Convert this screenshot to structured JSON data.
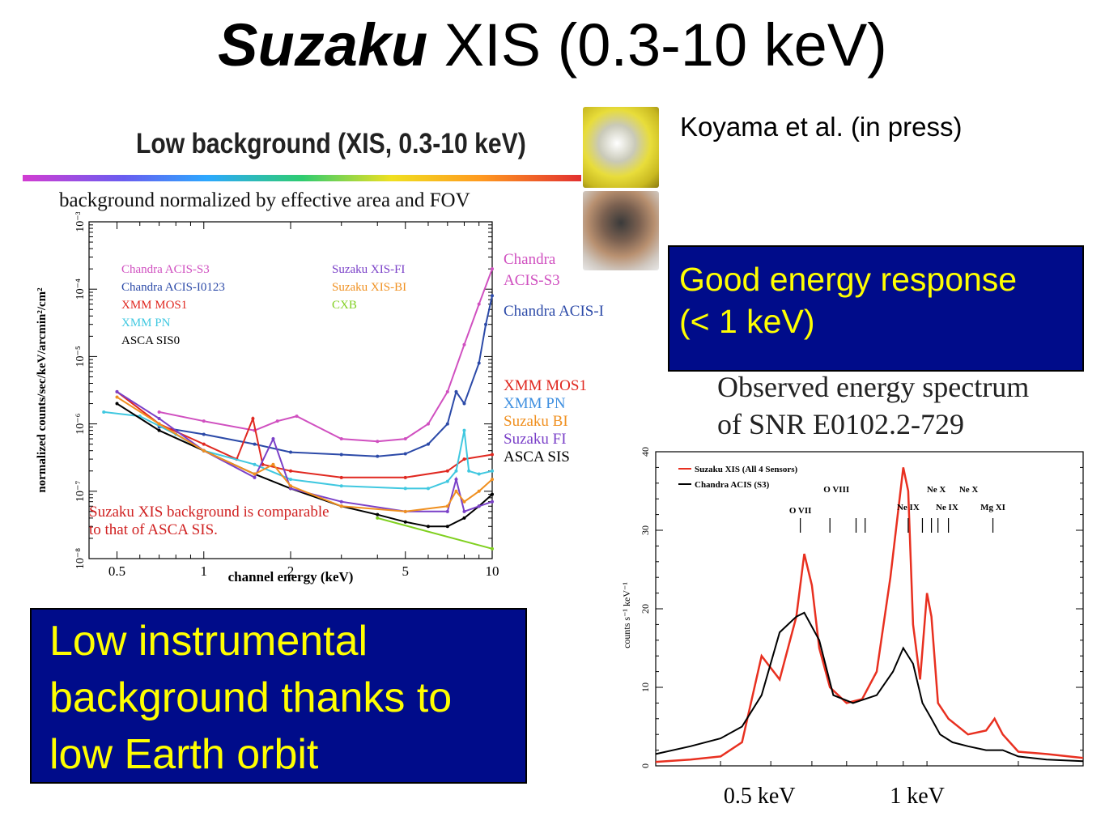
{
  "slide": {
    "title_italic": "Suzaku",
    "title_rest": " XIS (0.3-10 keV)",
    "citation": "Koyama et al. (in press)",
    "energy_box": [
      "Good energy response",
      "(< 1 keV)"
    ],
    "background_box": [
      "Low instrumental",
      "background thanks to",
      "low Earth orbit"
    ],
    "left_heading": "Low background (XIS, 0.3-10 keV)",
    "left_subtitle": "background normalized by effective area and FOV",
    "right_heading": [
      "Observed energy spectrum",
      "of SNR E0102.2-729"
    ]
  },
  "colors": {
    "box_bg": "#000c8a",
    "box_text": "#ffff00",
    "chandra_s3": "#d050c0",
    "chandra_i": "#2c4aa8",
    "xmm_mos1": "#e02820",
    "xmm_pn": "#40c8e0",
    "asca_sis0": "#000000",
    "suzaku_fi": "#7a40c8",
    "suzaku_bi": "#f09020",
    "cxb": "#80d020",
    "suzaku_xis_red": "#e83020"
  },
  "chart_data": [
    {
      "type": "line",
      "xlabel": "channel energy (keV)",
      "ylabel": "normalized counts/sec/keV/arcmin²/cm²",
      "xscale": "log",
      "yscale": "log",
      "xlim": [
        0.4,
        10
      ],
      "ylim": [
        1e-08,
        0.001
      ],
      "x_ticks": [
        "0.5",
        "1",
        "2",
        "5",
        "10"
      ],
      "y_ticks": [
        "10⁻⁸",
        "10⁻⁷",
        "10⁻⁶",
        "10⁻⁵",
        "10⁻⁴",
        "10⁻³"
      ],
      "legend": [
        "Chandra ACIS-S3",
        "Chandra ACIS-I0123",
        "XMM MOS1",
        "XMM PN",
        "ASCA SIS0",
        "Suzaku XIS-FI",
        "Suzaku XIS-BI",
        "CXB"
      ],
      "right_labels": [
        {
          "text": "Chandra",
          "color": "#d050c0"
        },
        {
          "text": "ACIS-S3",
          "color": "#d050c0"
        },
        {
          "text": "Chandra ACIS-I",
          "color": "#2c4aa8"
        },
        {
          "text": "XMM MOS1",
          "color": "#e02820"
        },
        {
          "text": "XMM PN",
          "color": "#4090e0"
        },
        {
          "text": "Suzaku BI",
          "color": "#f09020"
        },
        {
          "text": "Suzaku FI",
          "color": "#7a40c8"
        },
        {
          "text": "ASCA SIS",
          "color": "#000000"
        }
      ],
      "annotation": [
        "Suzaku XIS background is comparable",
        "to that of ASCA SIS."
      ],
      "series": [
        {
          "name": "Chandra ACIS-S3",
          "color": "#d050c0",
          "x": [
            0.7,
            1.0,
            1.5,
            1.8,
            2.1,
            3,
            4,
            5,
            6,
            7,
            8,
            9,
            10
          ],
          "y": [
            1.5e-06,
            1.1e-06,
            8e-07,
            1.1e-06,
            1.3e-06,
            6e-07,
            5.5e-07,
            6e-07,
            1e-06,
            3e-06,
            1.5e-05,
            6e-05,
            0.0002
          ]
        },
        {
          "name": "Chandra ACIS-I0123",
          "color": "#2c4aa8",
          "x": [
            0.7,
            1.0,
            1.5,
            2.0,
            3,
            4,
            5,
            6,
            7,
            7.5,
            8,
            9,
            9.5,
            10
          ],
          "y": [
            9e-07,
            7e-07,
            5e-07,
            3.8e-07,
            3.5e-07,
            3.3e-07,
            3.6e-07,
            5e-07,
            1e-06,
            3e-06,
            2e-06,
            8e-06,
            3e-05,
            8e-05
          ]
        },
        {
          "name": "XMM MOS1",
          "color": "#e02820",
          "x": [
            0.5,
            0.7,
            1.0,
            1.3,
            1.48,
            1.6,
            2.0,
            3,
            5,
            7,
            8,
            10
          ],
          "y": [
            3e-06,
            1e-06,
            5e-07,
            3e-07,
            1.2e-06,
            2.5e-07,
            2e-07,
            1.6e-07,
            1.6e-07,
            2e-07,
            3e-07,
            3.5e-07
          ]
        },
        {
          "name": "XMM PN",
          "color": "#40c8e0",
          "x": [
            0.45,
            0.6,
            0.8,
            1.0,
            1.5,
            2,
            3,
            5,
            6,
            7,
            7.5,
            8,
            8.3,
            9,
            10
          ],
          "y": [
            1.5e-06,
            1.3e-06,
            7e-07,
            4e-07,
            2.5e-07,
            1.5e-07,
            1.2e-07,
            1.1e-07,
            1.1e-07,
            1.4e-07,
            2e-07,
            8e-07,
            2e-07,
            1.8e-07,
            2e-07
          ]
        },
        {
          "name": "ASCA SIS0",
          "color": "#000000",
          "x": [
            0.5,
            0.7,
            1.0,
            1.5,
            2,
            3,
            4,
            5,
            6,
            7,
            8,
            9,
            10
          ],
          "y": [
            2e-06,
            8e-07,
            4e-07,
            1.8e-07,
            1.1e-07,
            6e-08,
            4.5e-08,
            3.5e-08,
            3e-08,
            3e-08,
            4e-08,
            6e-08,
            9e-08
          ]
        },
        {
          "name": "Suzaku XIS-FI",
          "color": "#7a40c8",
          "x": [
            0.5,
            0.7,
            1.0,
            1.5,
            1.74,
            2,
            3,
            5,
            7,
            7.5,
            8,
            9,
            10
          ],
          "y": [
            3e-06,
            1.2e-06,
            4e-07,
            1.6e-07,
            6e-07,
            1.1e-07,
            7e-08,
            5e-08,
            5e-08,
            1.5e-07,
            5e-08,
            6e-08,
            7e-08
          ]
        },
        {
          "name": "Suzaku XIS-BI",
          "color": "#f09020",
          "x": [
            0.5,
            0.7,
            1.0,
            1.5,
            1.74,
            2,
            3,
            5,
            7,
            7.5,
            8,
            9,
            10
          ],
          "y": [
            2.5e-06,
            1e-06,
            4e-07,
            1.8e-07,
            2.5e-07,
            1.2e-07,
            6e-08,
            5e-08,
            6e-08,
            1e-07,
            7e-08,
            1e-07,
            1.5e-07
          ]
        },
        {
          "name": "CXB",
          "color": "#80d020",
          "x": [
            4,
            10
          ],
          "y": [
            4e-08,
            1.4e-08
          ]
        }
      ]
    },
    {
      "type": "line",
      "xscale": "log",
      "xlim": [
        0.3,
        2.0
      ],
      "ylim": [
        0,
        40
      ],
      "ylabel": "counts s⁻¹ keV⁻¹",
      "y_ticks": [
        "0",
        "10",
        "20",
        "30",
        "40"
      ],
      "x_ticks": [
        "0.5 keV",
        "1 keV"
      ],
      "legend": [
        "Suzaku XIS (All 4 Sensors)",
        "Chandra ACIS (S3)"
      ],
      "line_labels": [
        "O VII",
        "O VIII",
        "Ne IX",
        "Ne X",
        "Ne IX",
        "Ne X",
        "Mg XI"
      ],
      "series": [
        {
          "name": "Suzaku XIS (All 4 Sensors)",
          "color": "#e83020",
          "x": [
            0.3,
            0.35,
            0.4,
            0.44,
            0.48,
            0.52,
            0.56,
            0.58,
            0.6,
            0.62,
            0.65,
            0.7,
            0.75,
            0.8,
            0.85,
            0.9,
            0.92,
            0.94,
            0.97,
            1.0,
            1.02,
            1.05,
            1.1,
            1.2,
            1.3,
            1.35,
            1.4,
            1.5,
            1.7,
            2.0
          ],
          "y": [
            0.5,
            0.8,
            1.2,
            3,
            14,
            11,
            19,
            27,
            23,
            15,
            10,
            8,
            8.5,
            12,
            24,
            38,
            35,
            18,
            11,
            22,
            19,
            8,
            6,
            4,
            4.5,
            6,
            4,
            1.8,
            1.5,
            1.0
          ]
        },
        {
          "name": "Chandra ACIS (S3)",
          "color": "#000000",
          "x": [
            0.3,
            0.35,
            0.4,
            0.44,
            0.48,
            0.52,
            0.56,
            0.58,
            0.62,
            0.66,
            0.72,
            0.8,
            0.86,
            0.9,
            0.94,
            0.98,
            1.02,
            1.06,
            1.12,
            1.2,
            1.3,
            1.4,
            1.5,
            1.7,
            2.0
          ],
          "y": [
            1.5,
            2.5,
            3.5,
            5,
            9,
            17,
            19,
            19.5,
            16,
            9,
            8,
            9,
            12,
            15,
            13,
            8,
            6,
            4,
            3,
            2.5,
            2,
            2,
            1.2,
            0.8,
            0.6
          ]
        }
      ]
    }
  ]
}
